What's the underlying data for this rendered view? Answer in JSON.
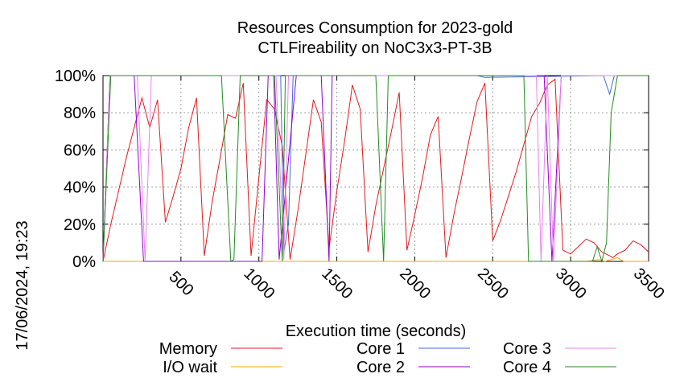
{
  "side_label": "17/06/2024, 19:23",
  "chart_data": {
    "type": "line",
    "title": "Resources Consumption for 2023-gold",
    "subtitle": "CTLFireability on NoC3x3-PT-3B",
    "xlabel": "Execution time (seconds)",
    "ylabel": "",
    "xlim": [
      0,
      3500
    ],
    "ylim": [
      0,
      100
    ],
    "grid": true,
    "legend_position": "bottom",
    "x_ticks": [
      500,
      1000,
      1500,
      2000,
      2500,
      3000,
      3500
    ],
    "y_ticks": [
      0,
      20,
      40,
      60,
      80,
      100
    ],
    "x_tick_labels": [
      "500",
      "1000",
      "1500",
      "2000",
      "2500",
      "3000",
      "3500"
    ],
    "y_tick_labels": [
      "0%",
      "20%",
      "40%",
      "60%",
      "80%",
      "100%"
    ],
    "series": [
      {
        "name": "Memory",
        "color": "#e31a1c",
        "x": [
          0,
          50,
          100,
          150,
          200,
          250,
          300,
          350,
          400,
          450,
          500,
          550,
          600,
          650,
          700,
          750,
          800,
          850,
          900,
          950,
          1000,
          1050,
          1100,
          1150,
          1200,
          1250,
          1300,
          1350,
          1400,
          1450,
          1500,
          1550,
          1600,
          1650,
          1700,
          1750,
          1800,
          1850,
          1900,
          1950,
          2000,
          2050,
          2100,
          2150,
          2200,
          2250,
          2300,
          2350,
          2400,
          2450,
          2500,
          2550,
          2600,
          2650,
          2700,
          2750,
          2800,
          2850,
          2900,
          2950,
          3000,
          3050,
          3100,
          3150,
          3200,
          3250,
          3270,
          3300,
          3350,
          3400,
          3450,
          3500
        ],
        "y": [
          0,
          20,
          38,
          56,
          72,
          88,
          72,
          87,
          21,
          35,
          50,
          72,
          88,
          3,
          32,
          55,
          79,
          77,
          96,
          3,
          45,
          87,
          82,
          62,
          1,
          27,
          57,
          87,
          75,
          7,
          38,
          65,
          95,
          82,
          5,
          30,
          50,
          70,
          91,
          6,
          25,
          45,
          68,
          78,
          2,
          25,
          45,
          66,
          86,
          96,
          11,
          22,
          35,
          48,
          63,
          78,
          85,
          95,
          98,
          6,
          4,
          8,
          12,
          10,
          5,
          3,
          2,
          4,
          6,
          11,
          9,
          5
        ]
      },
      {
        "name": "I/O wait",
        "color": "#ffa500",
        "x": [
          0,
          3100,
          3180,
          3220,
          3260,
          3300,
          3340,
          3500
        ],
        "y": [
          0,
          0,
          1,
          0,
          1,
          2,
          0,
          0
        ]
      },
      {
        "name": "Core 1",
        "color": "#4169e1",
        "x": [
          0,
          45,
          1140,
          1160,
          1190,
          1220,
          2400,
          2450,
          3210,
          3250,
          3280,
          3310,
          3500
        ],
        "y": [
          0,
          100,
          100,
          5,
          20,
          100,
          100,
          99,
          100,
          90,
          100,
          100,
          100
        ]
      },
      {
        "name": "Core 2",
        "color": "#9400d3",
        "x": [
          0,
          45,
          200,
          260,
          1020,
          1060,
          1095,
          1130,
          1240,
          1330,
          1400,
          1450,
          1470,
          2700,
          2830,
          2880,
          2940,
          3050,
          3500
        ],
        "y": [
          0,
          100,
          100,
          0,
          0,
          100,
          100,
          1,
          100,
          100,
          100,
          0,
          100,
          100,
          100,
          0,
          100,
          100,
          100
        ]
      },
      {
        "name": "Core 3",
        "color": "#ee82ee",
        "x": [
          0,
          45,
          220,
          270,
          310,
          1110,
          1160,
          1190,
          1720,
          1760,
          2780,
          2810,
          2850,
          2890,
          2940,
          3500
        ],
        "y": [
          0,
          100,
          100,
          0,
          100,
          100,
          1,
          100,
          100,
          100,
          100,
          0,
          100,
          0,
          100,
          100
        ]
      },
      {
        "name": "Core 4",
        "color": "#228b22",
        "x": [
          0,
          50,
          760,
          820,
          840,
          880,
          1100,
          1150,
          1170,
          1200,
          1750,
          1800,
          1830,
          1870,
          2700,
          2730,
          3140,
          3170,
          3200,
          3230,
          3260,
          3300,
          3500
        ],
        "y": [
          0,
          100,
          100,
          0,
          1,
          100,
          100,
          0,
          100,
          100,
          100,
          0,
          100,
          100,
          100,
          0,
          0,
          8,
          0,
          10,
          80,
          100,
          100
        ]
      }
    ]
  }
}
